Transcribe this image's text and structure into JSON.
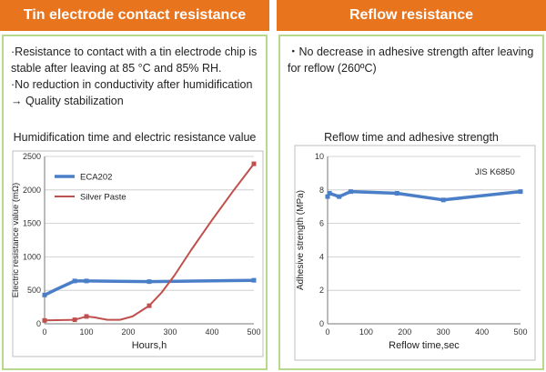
{
  "left": {
    "header": "Tin electrode contact resistance",
    "bullets": [
      "·Resistance to contact with a tin electrode chip is",
      "stable after leaving at 85 °C and 85% RH.",
      "·No reduction in conductivity after humidification",
      "  → Quality stabilization"
    ]
  },
  "right": {
    "header": "Reflow resistance",
    "bullets": [
      "・No decrease in adhesive strength after leaving",
      "for reflow (260ºC)"
    ]
  },
  "chart_data": [
    {
      "type": "line",
      "title": "Humidification time and electric resistance value",
      "xlabel": "Hours,h",
      "ylabel": "Electric resistance value (mΩ)",
      "xlim": [
        0,
        500
      ],
      "ylim": [
        0,
        2500
      ],
      "xticks": [
        0,
        100,
        200,
        300,
        400,
        500
      ],
      "yticks": [
        0,
        500,
        1000,
        1500,
        2000,
        2500
      ],
      "series": [
        {
          "name": "ECA202",
          "color": "#4a7fc8",
          "x": [
            0,
            72,
            100,
            250,
            500
          ],
          "y": [
            430,
            640,
            640,
            630,
            650
          ],
          "curve": [
            [
              0,
              430
            ],
            [
              30,
              520
            ],
            [
              72,
              640
            ],
            [
              100,
              640
            ],
            [
              250,
              630
            ],
            [
              500,
              650
            ]
          ]
        },
        {
          "name": "Silver Paste",
          "color": "#c0504d",
          "x": [
            0,
            72,
            100,
            250,
            500
          ],
          "y": [
            50,
            60,
            110,
            270,
            2390
          ],
          "curve": [
            [
              0,
              50
            ],
            [
              72,
              60
            ],
            [
              100,
              110
            ],
            [
              120,
              95
            ],
            [
              150,
              60
            ],
            [
              180,
              60
            ],
            [
              210,
              110
            ],
            [
              250,
              270
            ],
            [
              280,
              470
            ],
            [
              310,
              720
            ],
            [
              350,
              1100
            ],
            [
              400,
              1550
            ],
            [
              450,
              1980
            ],
            [
              500,
              2390
            ]
          ]
        }
      ]
    },
    {
      "type": "line",
      "title": "Reflow time and adhesive strength",
      "xlabel": "Reflow time,sec",
      "ylabel": "Adhesive strength (MPa)",
      "xlim": [
        0,
        500
      ],
      "ylim": [
        0,
        10
      ],
      "xticks": [
        0,
        100,
        200,
        300,
        400,
        500
      ],
      "yticks": [
        0,
        2,
        4,
        6,
        8,
        10
      ],
      "annotation": "JIS K6850",
      "series": [
        {
          "name": "Adhesive strength",
          "color": "#4a7fc8",
          "x": [
            0,
            5,
            30,
            60,
            180,
            300,
            500
          ],
          "y": [
            7.6,
            7.8,
            7.6,
            7.9,
            7.8,
            7.4,
            7.9
          ]
        }
      ]
    }
  ]
}
